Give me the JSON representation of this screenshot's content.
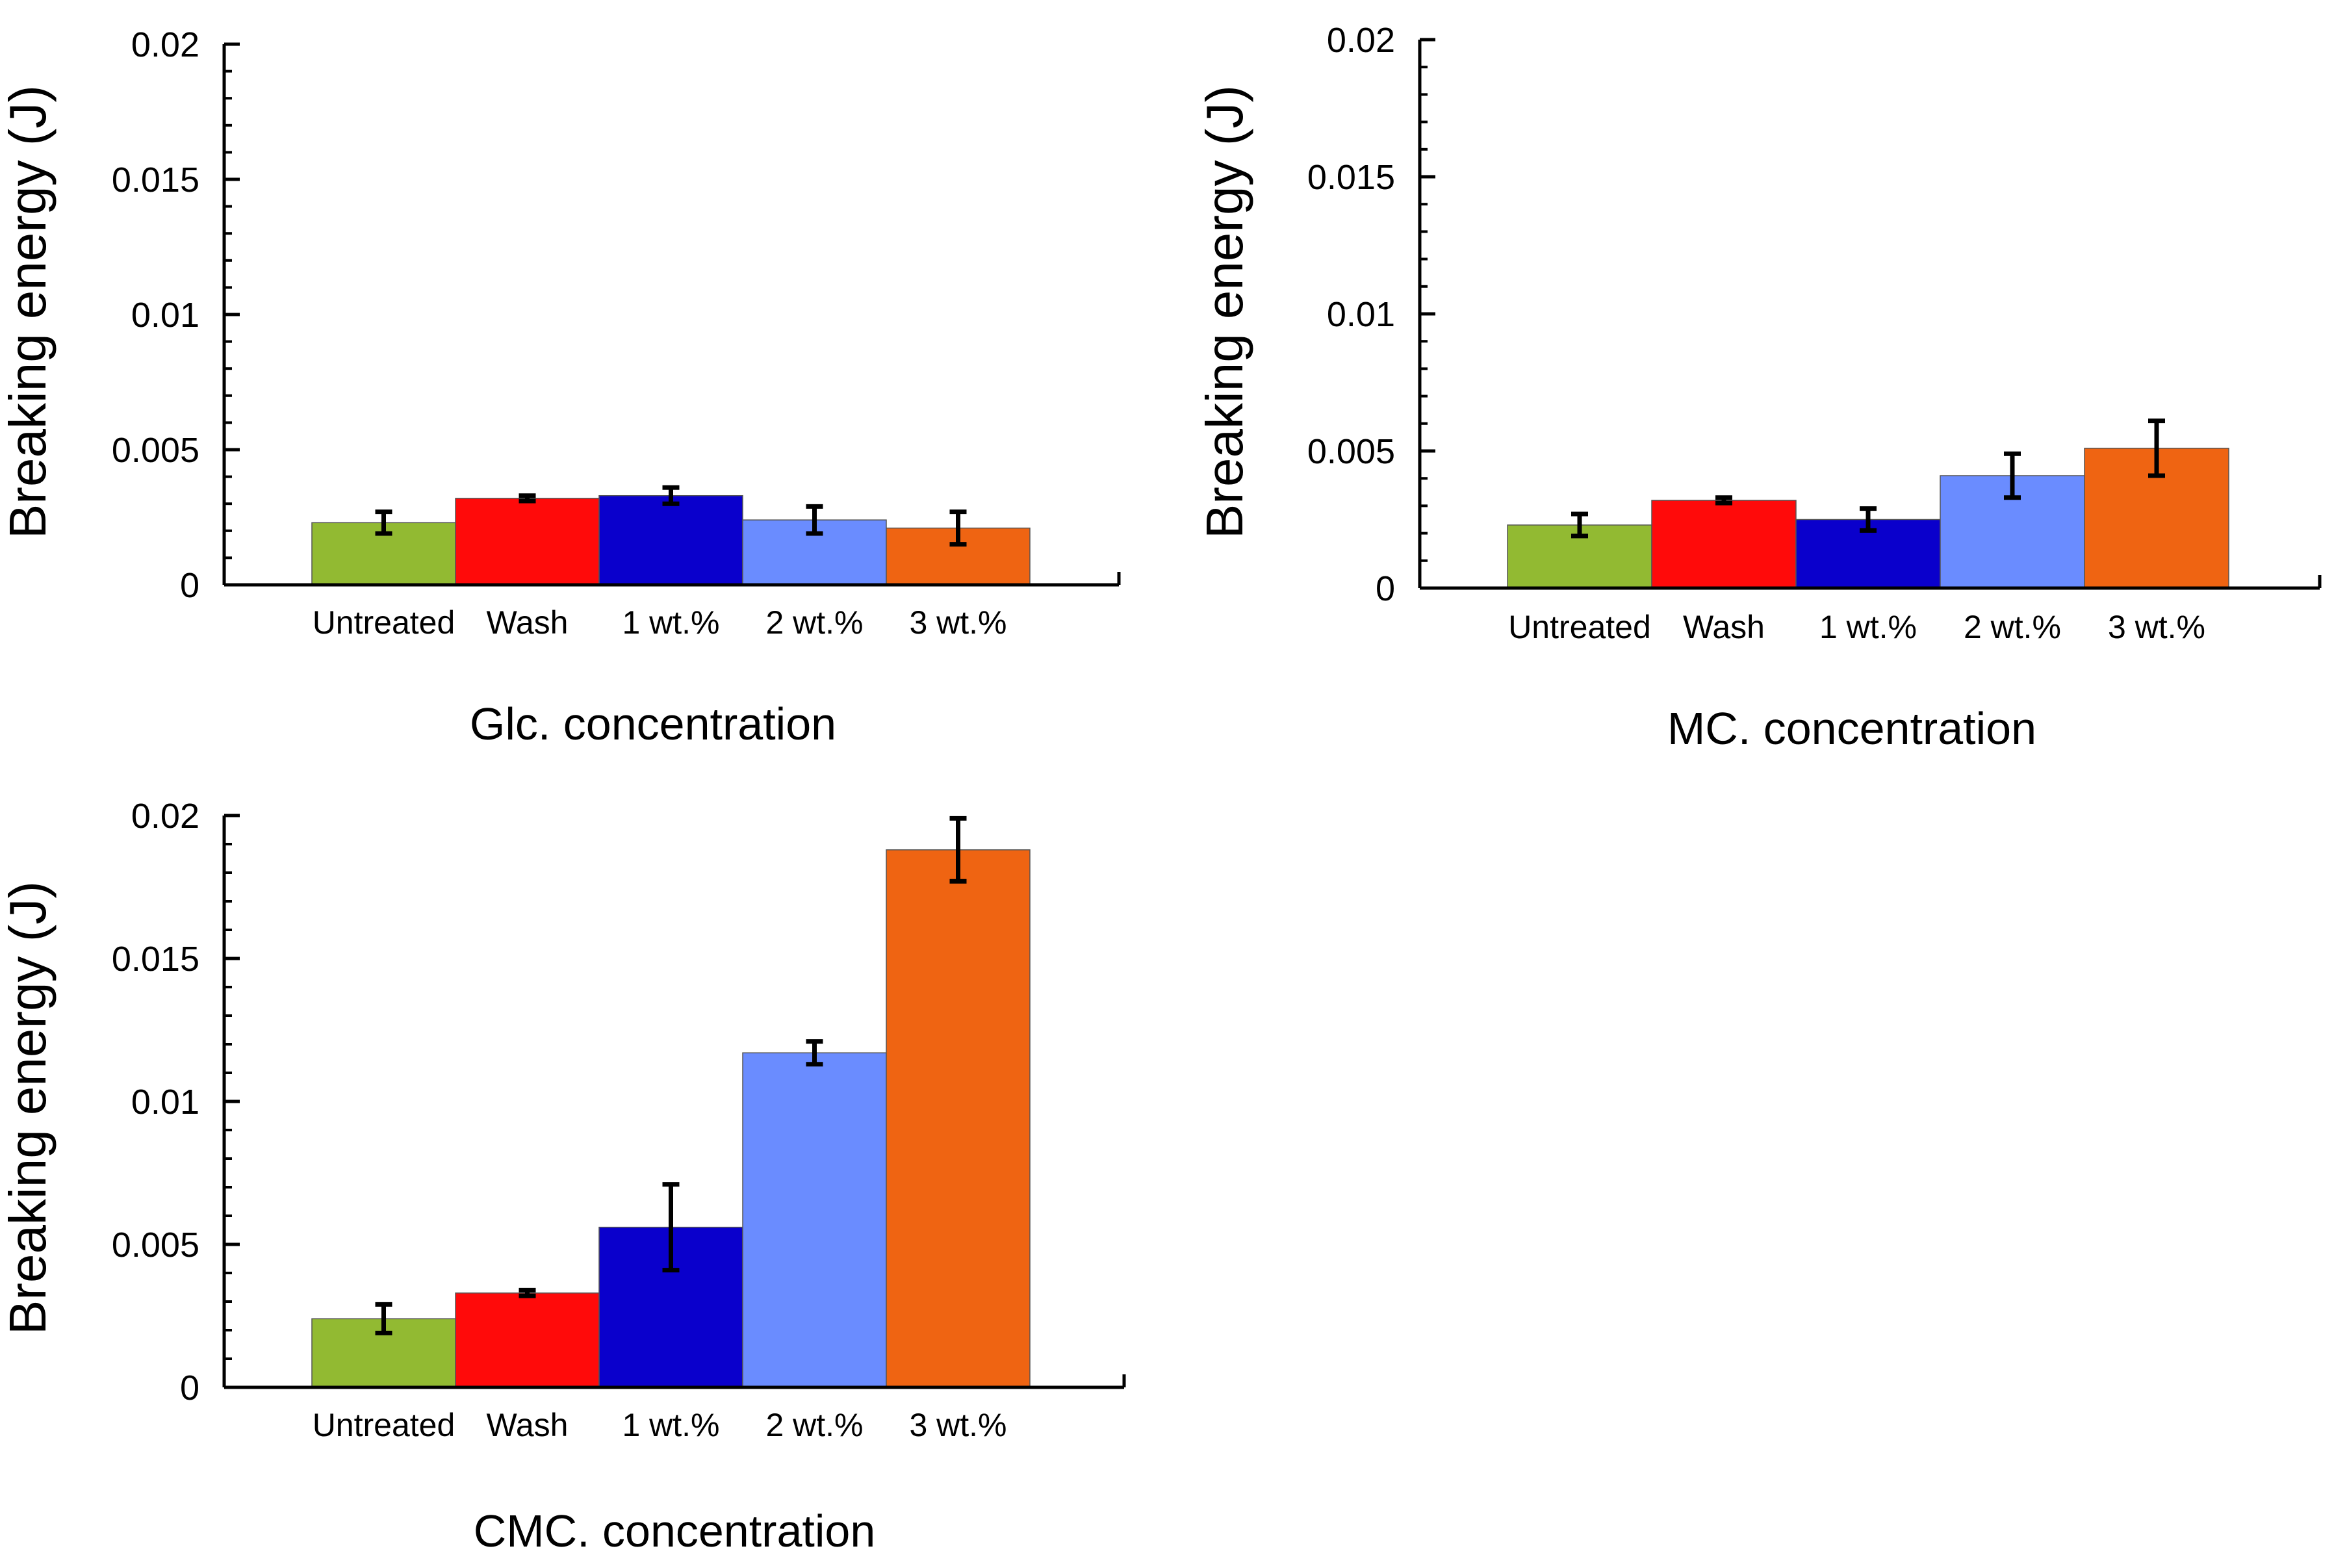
{
  "chart_data": [
    {
      "type": "bar",
      "title": "",
      "xlabel": "Glc. concentration",
      "ylabel": "Breaking energy (J)",
      "ylim": [
        0,
        0.02
      ],
      "yticks": [
        "0",
        "0.005",
        "0.01",
        "0.015",
        "0.02"
      ],
      "categories": [
        "Untreated",
        "Wash",
        "1 wt.%",
        "2 wt.%",
        "3 wt.%"
      ],
      "values": [
        0.0023,
        0.0032,
        0.0033,
        0.0024,
        0.0021
      ],
      "errors": [
        0.0004,
        0.0001,
        0.0003,
        0.0005,
        0.0006
      ],
      "colors": [
        "#92ba32",
        "#ff0a0a",
        "#0a00cc",
        "#6a8cff",
        "#ef6412"
      ]
    },
    {
      "type": "bar",
      "title": "",
      "xlabel": "MC. concentration",
      "ylabel": "Breaking energy (J)",
      "ylim": [
        0,
        0.02
      ],
      "yticks": [
        "0",
        "0.005",
        "0.01",
        "0.015",
        "0.02"
      ],
      "categories": [
        "Untreated",
        "Wash",
        "1 wt.%",
        "2 wt.%",
        "3 wt.%"
      ],
      "values": [
        0.0023,
        0.0032,
        0.0025,
        0.0041,
        0.0051
      ],
      "errors": [
        0.0004,
        0.0001,
        0.0004,
        0.0008,
        0.001
      ],
      "colors": [
        "#92ba32",
        "#ff0a0a",
        "#0a00cc",
        "#6a8cff",
        "#ef6412"
      ]
    },
    {
      "type": "bar",
      "title": "",
      "xlabel": "CMC. concentration",
      "ylabel": "Breaking energy (J)",
      "ylim": [
        0,
        0.02
      ],
      "yticks": [
        "0",
        "0.005",
        "0.01",
        "0.015",
        "0.02"
      ],
      "categories": [
        "Untreated",
        "Wash",
        "1 wt.%",
        "2 wt.%",
        "3 wt.%"
      ],
      "values": [
        0.0024,
        0.0033,
        0.0056,
        0.0117,
        0.0188
      ],
      "errors": [
        0.0005,
        0.0001,
        0.0015,
        0.0004,
        0.0011
      ],
      "colors": [
        "#92ba32",
        "#ff0a0a",
        "#0a00cc",
        "#6a8cff",
        "#ef6412"
      ]
    }
  ]
}
